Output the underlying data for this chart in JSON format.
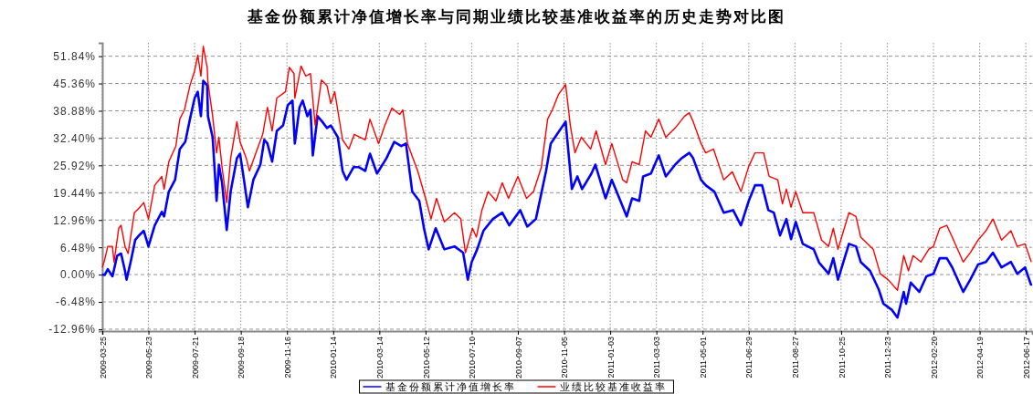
{
  "chart_data": {
    "type": "line",
    "title": "基金份额累计净值增长率与同期业绩比较基准收益率的历史走势对比图",
    "xlim": [
      "2009-03-25",
      "2012-06-25"
    ],
    "xticks": [
      "2009-03-25",
      "2009-05-23",
      "2009-07-21",
      "2009-09-18",
      "2009-11-16",
      "2010-01-14",
      "2010-03-14",
      "2010-05-12",
      "2010-07-10",
      "2010-09-07",
      "2010-11-05",
      "2011-01-03",
      "2011-03-03",
      "2011-05-01",
      "2011-06-29",
      "2011-08-27",
      "2011-10-25",
      "2011-12-23",
      "2012-02-20",
      "2012-04-19",
      "2012-06-17"
    ],
    "ylim": [
      -13.4,
      55
    ],
    "yticks": [
      {
        "value": -12.96,
        "label": "-12.96%"
      },
      {
        "value": -6.48,
        "label": "-6.48%"
      },
      {
        "value": 0,
        "label": "0.00%"
      },
      {
        "value": 6.48,
        "label": "6.48%"
      },
      {
        "value": 12.96,
        "label": "12.96%"
      },
      {
        "value": 19.44,
        "label": "19.44%"
      },
      {
        "value": 25.92,
        "label": "25.92%"
      },
      {
        "value": 32.4,
        "label": "32.40%"
      },
      {
        "value": 38.88,
        "label": "38.88%"
      },
      {
        "value": 45.36,
        "label": "45.36%"
      },
      {
        "value": 51.84,
        "label": "51.84%"
      }
    ],
    "grid": true,
    "legend": "bottom",
    "line_style": "solid",
    "marker": "none",
    "series": [
      {
        "name": "基金份额累计净值增长率",
        "color": "#0000ff",
        "x": [
          "2009-03-25",
          "2009-03-28",
          "2009-04-01",
          "2009-04-07",
          "2009-04-13",
          "2009-04-18",
          "2009-04-23",
          "2009-04-25",
          "2009-04-30",
          "2009-05-06",
          "2009-05-12",
          "2009-05-17",
          "2009-05-23",
          "2009-05-31",
          "2009-06-09",
          "2009-06-12",
          "2009-06-18",
          "2009-06-26",
          "2009-07-02",
          "2009-07-09",
          "2009-07-15",
          "2009-07-21",
          "2009-07-25",
          "2009-07-29",
          "2009-08-01",
          "2009-08-06",
          "2009-08-07",
          "2009-08-13",
          "2009-08-18",
          "2009-08-21",
          "2009-08-25",
          "2009-08-31",
          "2009-09-05",
          "2009-09-13",
          "2009-09-17",
          "2009-09-22",
          "2009-09-27",
          "2009-10-04",
          "2009-10-13",
          "2009-10-18",
          "2009-10-22",
          "2009-10-28",
          "2009-11-03",
          "2009-11-11",
          "2009-11-17",
          "2009-11-23",
          "2009-11-26",
          "2009-12-02",
          "2009-12-06",
          "2009-12-12",
          "2009-12-16",
          "2009-12-19",
          "2009-12-25",
          "2009-12-31",
          "2010-01-06",
          "2010-01-11",
          "2010-01-20",
          "2010-01-26",
          "2010-01-31",
          "2010-02-09",
          "2010-02-16",
          "2010-02-24",
          "2010-03-02",
          "2010-03-11",
          "2010-03-23",
          "2010-04-02",
          "2010-04-11",
          "2010-04-17",
          "2010-04-25",
          "2010-05-04",
          "2010-05-10",
          "2010-05-16",
          "2010-05-25",
          "2010-06-05",
          "2010-06-18",
          "2010-06-29",
          "2010-07-05",
          "2010-07-10",
          "2010-07-17",
          "2010-07-25",
          "2010-08-06",
          "2010-08-18",
          "2010-08-27",
          "2010-09-10",
          "2010-09-19",
          "2010-09-30",
          "2010-10-13",
          "2010-10-19",
          "2010-10-27",
          "2010-11-07",
          "2010-11-15",
          "2010-11-22",
          "2010-11-28",
          "2010-12-10",
          "2010-12-15",
          "2010-12-28",
          "2011-01-05",
          "2011-01-16",
          "2011-01-24",
          "2011-01-31",
          "2011-02-09",
          "2011-02-14",
          "2011-02-24",
          "2011-03-06",
          "2011-03-15",
          "2011-03-27",
          "2011-04-04",
          "2011-04-14",
          "2011-04-19",
          "2011-04-29",
          "2011-05-05",
          "2011-05-16",
          "2011-05-28",
          "2011-06-09",
          "2011-06-19",
          "2011-06-29",
          "2011-07-07",
          "2011-07-16",
          "2011-07-24",
          "2011-07-31",
          "2011-08-08",
          "2011-08-16",
          "2011-08-22",
          "2011-08-28",
          "2011-09-06",
          "2011-09-20",
          "2011-09-27",
          "2011-10-09",
          "2011-10-15",
          "2011-10-21",
          "2011-11-04",
          "2011-11-13",
          "2011-11-19",
          "2011-12-01",
          "2011-12-12",
          "2011-12-18",
          "2011-12-29",
          "2012-01-05",
          "2012-01-13",
          "2012-01-16",
          "2012-01-22",
          "2012-02-02",
          "2012-02-11",
          "2012-02-20",
          "2012-02-28",
          "2012-03-08",
          "2012-03-15",
          "2012-03-29",
          "2012-04-07",
          "2012-04-17",
          "2012-04-27",
          "2012-05-06",
          "2012-05-17",
          "2012-05-29",
          "2012-06-06",
          "2012-06-16",
          "2012-06-24"
        ],
        "values": [
          0,
          -0.1,
          1.3,
          -0.4,
          4.5,
          5.0,
          0.9,
          -1.2,
          2.8,
          8.2,
          9.5,
          10.4,
          6.7,
          11.7,
          14.9,
          13.8,
          19.7,
          22.5,
          29.8,
          31.5,
          36.9,
          41.9,
          43.4,
          37.6,
          46.0,
          44.9,
          37.6,
          32.6,
          17.5,
          26.1,
          21.8,
          10.6,
          19.7,
          27.6,
          28.7,
          22.5,
          16.0,
          22.5,
          26.1,
          32.0,
          31.1,
          26.8,
          34.1,
          35.4,
          40.2,
          41.3,
          31.1,
          39.7,
          41.3,
          37.6,
          39.1,
          28.3,
          37.6,
          36.3,
          34.8,
          35.4,
          32.6,
          24.6,
          22.5,
          25.5,
          25.5,
          24.6,
          28.7,
          24.0,
          27.6,
          31.5,
          30.5,
          31.1,
          19.7,
          17.5,
          11.0,
          6.0,
          11.0,
          6.0,
          6.7,
          5.2,
          -1.2,
          3.0,
          6.0,
          10.4,
          13.2,
          14.7,
          11.7,
          15.3,
          11.4,
          13.2,
          24.6,
          31.1,
          33.3,
          36.3,
          20.3,
          23.3,
          20.3,
          24.0,
          26.1,
          18.1,
          22.5,
          17.5,
          13.8,
          18.1,
          17.5,
          23.3,
          24.0,
          28.3,
          23.3,
          26.1,
          27.6,
          28.9,
          27.6,
          22.5,
          21.2,
          19.7,
          14.7,
          15.3,
          11.7,
          17.5,
          21.2,
          21.2,
          15.3,
          14.7,
          9.3,
          13.2,
          8.4,
          12.5,
          7.3,
          6.0,
          2.8,
          0.2,
          3.9,
          -1.2,
          7.3,
          6.7,
          3.0,
          0.9,
          -3.5,
          -6.9,
          -8.4,
          -10.2,
          -4.1,
          -6.9,
          -1.9,
          -4.1,
          -0.4,
          0.2,
          3.9,
          3.9,
          1.7,
          -4.1,
          -1.2,
          2.4,
          3.0,
          5.2,
          1.7,
          3.0,
          0.2,
          1.7,
          -2.6
        ]
      },
      {
        "name": "业绩比较基准收益率",
        "color": "#ff0000",
        "x": [
          "2009-03-25",
          "2009-03-28",
          "2009-04-01",
          "2009-04-07",
          "2009-04-09",
          "2009-04-15",
          "2009-04-18",
          "2009-04-23",
          "2009-04-27",
          "2009-05-05",
          "2009-05-12",
          "2009-05-17",
          "2009-05-23",
          "2009-05-31",
          "2009-06-09",
          "2009-06-12",
          "2009-06-18",
          "2009-06-27",
          "2009-07-02",
          "2009-07-08",
          "2009-07-15",
          "2009-07-21",
          "2009-07-25",
          "2009-07-29",
          "2009-08-01",
          "2009-08-06",
          "2009-08-07",
          "2009-08-13",
          "2009-08-18",
          "2009-08-21",
          "2009-08-25",
          "2009-08-31",
          "2009-09-05",
          "2009-09-13",
          "2009-09-17",
          "2009-09-25",
          "2009-09-29",
          "2009-10-09",
          "2009-10-16",
          "2009-10-22",
          "2009-10-28",
          "2009-11-03",
          "2009-11-14",
          "2009-11-19",
          "2009-11-25",
          "2009-11-26",
          "2009-12-04",
          "2009-12-10",
          "2009-12-16",
          "2009-12-22",
          "2009-12-30",
          "2010-01-06",
          "2010-01-11",
          "2010-01-16",
          "2010-01-26",
          "2010-02-03",
          "2010-02-10",
          "2010-02-24",
          "2010-03-02",
          "2010-03-13",
          "2010-03-21",
          "2010-03-30",
          "2010-04-09",
          "2010-04-13",
          "2010-04-19",
          "2010-05-02",
          "2010-05-13",
          "2010-05-19",
          "2010-05-26",
          "2010-06-05",
          "2010-06-18",
          "2010-06-26",
          "2010-07-02",
          "2010-07-11",
          "2010-07-16",
          "2010-07-23",
          "2010-07-31",
          "2010-08-10",
          "2010-08-18",
          "2010-08-26",
          "2010-09-07",
          "2010-09-18",
          "2010-09-27",
          "2010-10-07",
          "2010-10-15",
          "2010-10-21",
          "2010-10-29",
          "2010-11-07",
          "2010-11-13",
          "2010-11-19",
          "2010-11-27",
          "2010-12-09",
          "2010-12-16",
          "2010-12-28",
          "2011-01-05",
          "2011-01-19",
          "2011-01-24",
          "2011-01-31",
          "2011-02-09",
          "2011-02-17",
          "2011-02-24",
          "2011-03-06",
          "2011-03-15",
          "2011-03-27",
          "2011-04-08",
          "2011-04-14",
          "2011-04-19",
          "2011-04-29",
          "2011-05-05",
          "2011-05-15",
          "2011-05-28",
          "2011-06-08",
          "2011-06-19",
          "2011-06-29",
          "2011-07-07",
          "2011-07-18",
          "2011-07-25",
          "2011-08-05",
          "2011-08-11",
          "2011-08-16",
          "2011-08-22",
          "2011-08-28",
          "2011-09-06",
          "2011-09-20",
          "2011-09-30",
          "2011-10-09",
          "2011-10-15",
          "2011-10-21",
          "2011-11-04",
          "2011-11-13",
          "2011-11-19",
          "2011-12-05",
          "2011-12-14",
          "2011-12-24",
          "2012-01-05",
          "2012-01-13",
          "2012-01-19",
          "2012-01-25",
          "2012-02-04",
          "2012-02-14",
          "2012-02-20",
          "2012-02-28",
          "2012-03-08",
          "2012-03-15",
          "2012-03-29",
          "2012-04-07",
          "2012-04-17",
          "2012-04-27",
          "2012-05-06",
          "2012-05-17",
          "2012-05-29",
          "2012-06-06",
          "2012-06-16",
          "2012-06-24"
        ],
        "values": [
          1.7,
          3.5,
          6.7,
          6.7,
          3.0,
          11.0,
          11.7,
          6.7,
          5.0,
          14.7,
          16.0,
          17.1,
          13.2,
          21.2,
          23.3,
          20.3,
          26.8,
          30.5,
          36.9,
          39.1,
          44.9,
          48.4,
          52.1,
          47.1,
          54.2,
          49.2,
          45.6,
          37.6,
          28.9,
          32.6,
          25.5,
          17.1,
          27.6,
          36.3,
          31.5,
          27.6,
          24.6,
          29.8,
          33.3,
          39.7,
          34.1,
          41.9,
          43.4,
          49.2,
          47.7,
          41.9,
          49.5,
          47.1,
          47.7,
          35.4,
          46.2,
          44.9,
          40.6,
          43.4,
          32.0,
          29.8,
          33.3,
          32.0,
          36.9,
          31.1,
          35.4,
          39.5,
          38.0,
          39.1,
          31.1,
          24.6,
          17.5,
          13.2,
          18.1,
          12.5,
          14.7,
          13.2,
          5.2,
          11.0,
          8.9,
          15.3,
          19.7,
          17.5,
          21.8,
          18.1,
          23.3,
          18.1,
          19.7,
          25.5,
          36.9,
          39.1,
          42.8,
          45.1,
          35.4,
          28.9,
          32.6,
          29.8,
          34.1,
          26.1,
          31.1,
          22.5,
          21.8,
          26.8,
          26.1,
          34.1,
          32.6,
          36.9,
          32.6,
          34.8,
          37.6,
          38.4,
          36.3,
          31.1,
          28.9,
          29.8,
          22.5,
          24.4,
          19.7,
          25.7,
          28.9,
          28.9,
          23.3,
          22.5,
          16.8,
          20.3,
          16.0,
          19.7,
          14.7,
          14.7,
          8.2,
          6.7,
          11.0,
          6.0,
          14.7,
          13.8,
          8.9,
          6.0,
          0.2,
          -1.2,
          -3.7,
          4.5,
          0.9,
          4.5,
          3.0,
          6.0,
          6.7,
          11.0,
          11.7,
          8.9,
          3.0,
          5.2,
          8.2,
          10.4,
          13.2,
          8.2,
          10.4,
          6.7,
          7.3,
          3.0
        ]
      }
    ]
  }
}
